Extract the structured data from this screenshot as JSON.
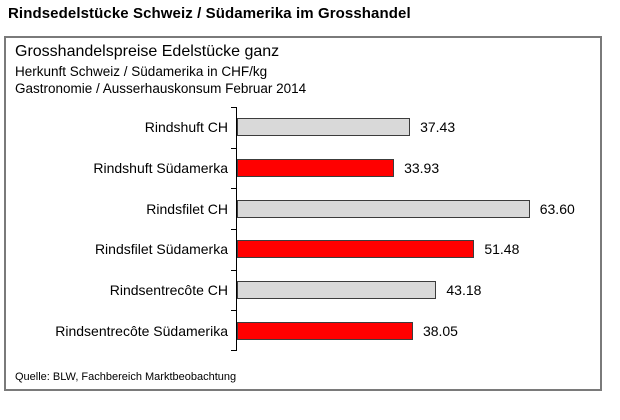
{
  "page": {
    "title": "Rindsedelstücke Schweiz / Südamerika im Grosshandel"
  },
  "chart_box": {
    "title": "Grosshandelspreise Edelstücke ganz",
    "subtitle1": "Herkunft Schweiz / Südamerika in CHF/kg",
    "subtitle2": "Gastronomie / Ausserhauskonsum Februar 2014",
    "source": "Quelle: BLW, Fachbereich Marktbeobachtung"
  },
  "colors": {
    "bar_switzerland": "#d9d9d9",
    "bar_suedamerika": "#ff0000",
    "bar_border": "#3c3c3c",
    "box_border": "#7a7a7a",
    "axis": "#000000"
  },
  "chart_data": {
    "type": "bar",
    "orientation": "horizontal",
    "title": "Grosshandelspreise Edelstücke ganz",
    "subtitle": "Herkunft Schweiz / Südamerika in CHF/kg — Gastronomie / Ausserhauskonsum Februar 2014",
    "unit": "CHF/kg",
    "categories": [
      "Rindshuft CH",
      "Rindshuft Südamerka",
      "Rindsfilet CH",
      "Rindsfilet Südamerka",
      "Rindsentrecôte CH",
      "Rindsentrecôte Südamerika"
    ],
    "values": [
      37.43,
      33.93,
      63.6,
      51.48,
      43.18,
      38.05
    ],
    "value_labels": [
      "37.43",
      "33.93",
      "63.60",
      "51.48",
      "43.18",
      "38.05"
    ],
    "bar_colors": [
      "#d9d9d9",
      "#ff0000",
      "#d9d9d9",
      "#ff0000",
      "#d9d9d9",
      "#ff0000"
    ],
    "xlim": [
      0,
      70
    ],
    "grid": false,
    "legend": false,
    "data_labels": "end-of-bar",
    "source": "Quelle: BLW, Fachbereich Marktbeobachtung"
  }
}
